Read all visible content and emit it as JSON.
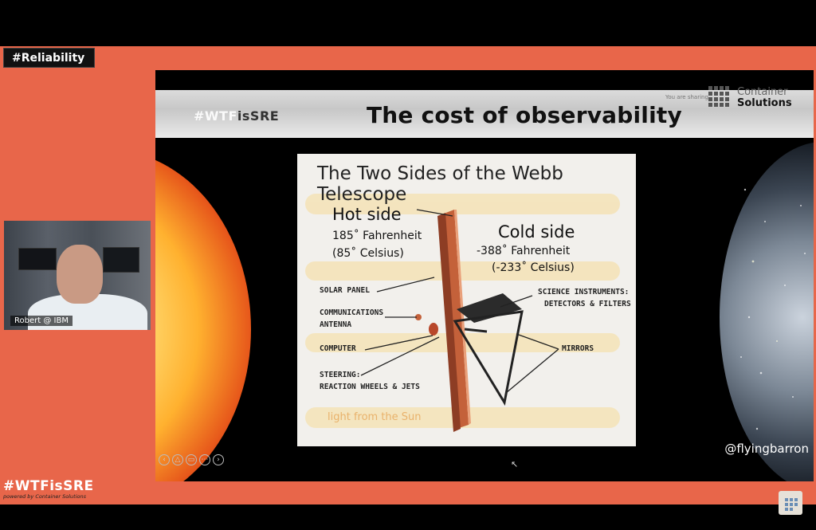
{
  "event_tag": "#Reliability",
  "slide": {
    "header_logo_left": "#WTF",
    "header_logo_right": "isSRE",
    "title": "The cost of observability",
    "company_line1": "Container",
    "company_line2": "Solutions",
    "tiny_note": "You are sharing"
  },
  "diagram": {
    "title": "The Two Sides of the Webb Telescope",
    "hot_heading": "Hot side",
    "hot_fahrenheit": "185˚ Fahrenheit",
    "hot_celsius": "(85˚ Celsius)",
    "cold_heading": "Cold side",
    "cold_fahrenheit": "-388˚ Fahrenheit",
    "cold_celsius": "(-233˚ Celsius)",
    "labels": {
      "solar_panel": "SOLAR PANEL",
      "communications_1": "COMMUNICATIONS",
      "communications_2": "ANTENNA",
      "computer": "COMPUTER",
      "steering_1": "STEERING:",
      "steering_2": "REACTION WHEELS & JETS",
      "science_1": "SCIENCE INSTRUMENTS:",
      "science_2": "DETECTORS & FILTERS",
      "mirrors": "MIRRORS",
      "sunlight": "light from the Sun"
    }
  },
  "presenter_handle": "@flyingbarron",
  "camera_name": "Robert @ IBM",
  "brand": {
    "name": "#WTFisSRE",
    "tagline": "powered by Container Solutions"
  },
  "colors": {
    "stage": "#e8664a",
    "background": "#000000"
  }
}
